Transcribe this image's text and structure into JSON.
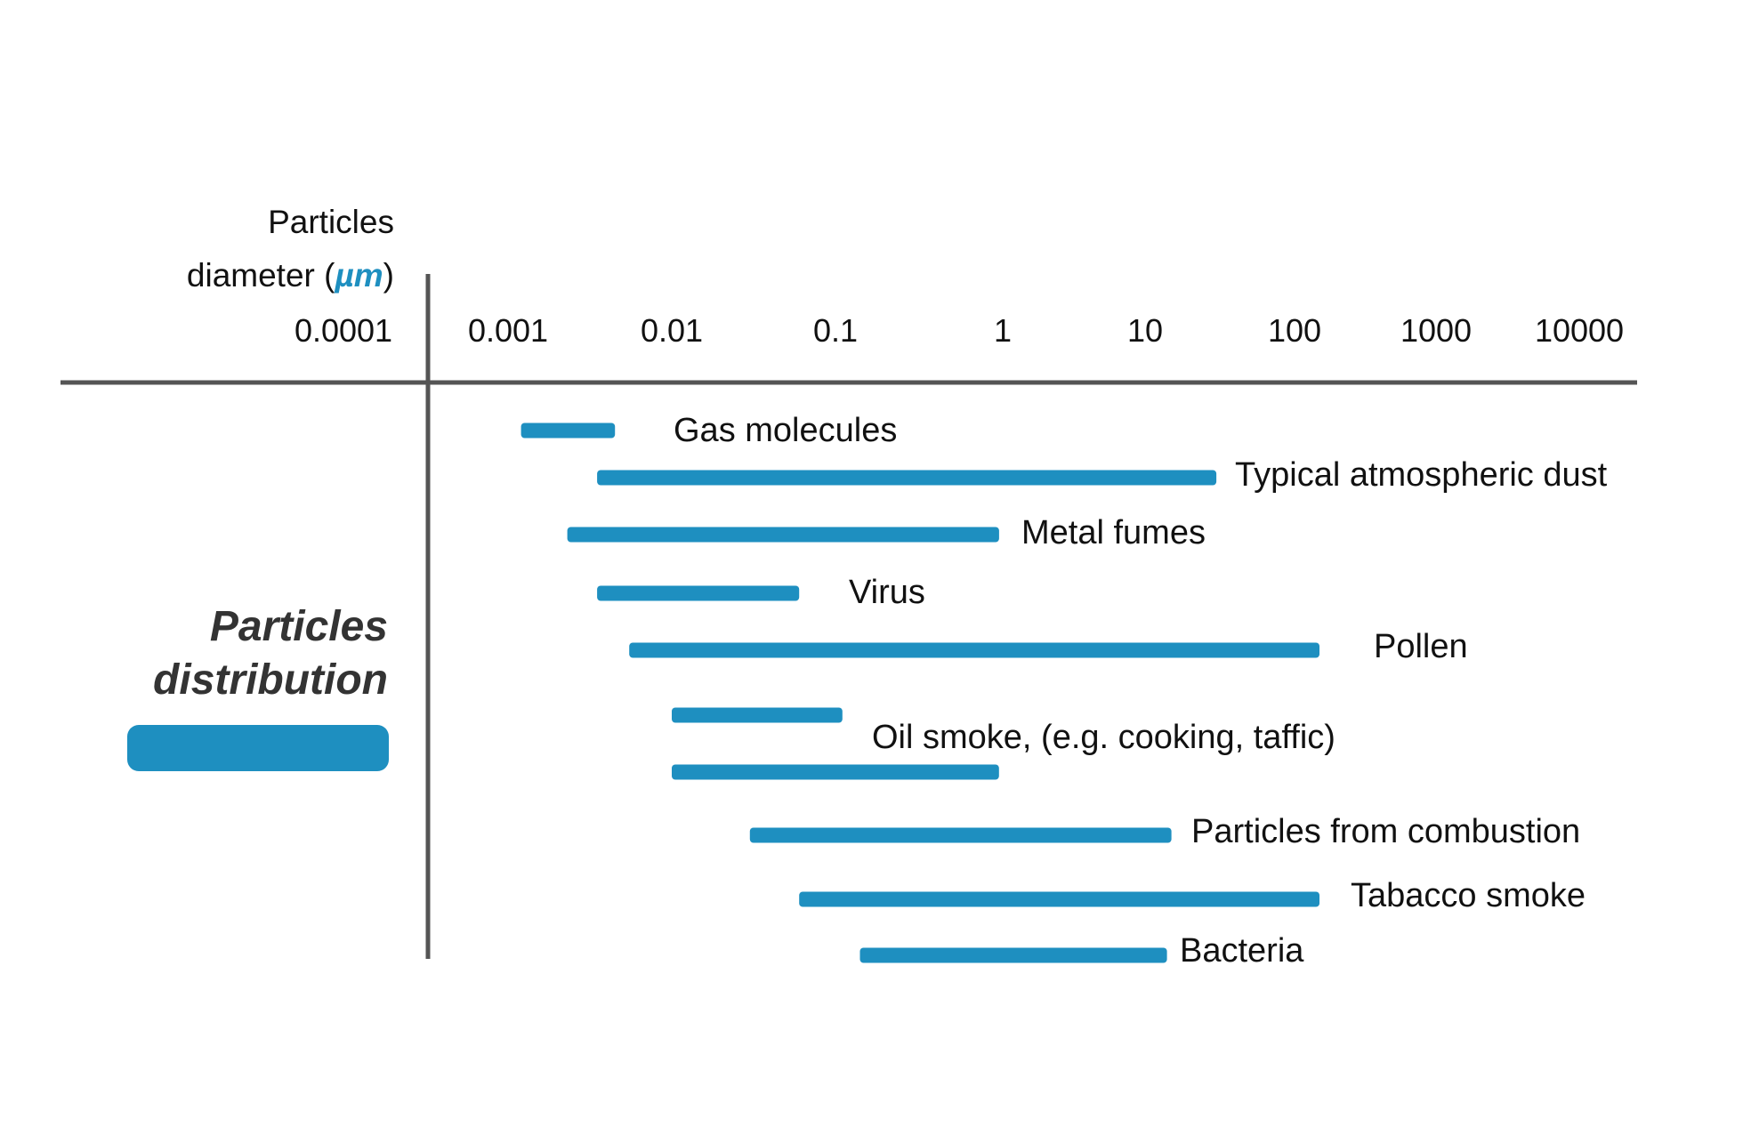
{
  "colors": {
    "bar": "#1e8fc0",
    "axis": "#555555",
    "text": "#111111",
    "legend_title": "#333333"
  },
  "chart_data": {
    "type": "bar",
    "orientation": "horizontal",
    "x_scale": "log",
    "xlabel_lines": [
      "Particles",
      "diameter ("
    ],
    "xlabel_unit": "µm",
    "xlabel_close": ")",
    "xlim": [
      0.0001,
      10000
    ],
    "x_ticks": [
      "0.0001",
      "0.001",
      "0.01",
      "0.1",
      "1",
      "10",
      "100",
      "1000",
      "10000"
    ],
    "legend_title_lines": [
      "Particles",
      "distribution"
    ],
    "legend_placement": "left",
    "categories": [
      "Gas molecules",
      "Typical atmospheric dust",
      "Metal fumes",
      "Virus",
      "Pollen",
      "Oil smoke, (e.g. cooking, taffic)",
      "Particles from combustion",
      "Tabacco smoke",
      "Bacteria"
    ],
    "ranges": [
      {
        "label": "Gas molecules",
        "bars": [
          [
            0.0012,
            0.0045
          ]
        ]
      },
      {
        "label": "Typical atmospheric dust",
        "bars": [
          [
            0.0035,
            30
          ]
        ]
      },
      {
        "label": "Metal fumes",
        "bars": [
          [
            0.0023,
            0.95
          ]
        ]
      },
      {
        "label": "Virus",
        "bars": [
          [
            0.0035,
            0.06
          ]
        ]
      },
      {
        "label": "Pollen",
        "bars": [
          [
            0.0055,
            150
          ]
        ]
      },
      {
        "label": "Oil smoke, (e.g. cooking, taffic)",
        "bars": [
          [
            0.01,
            0.11
          ],
          [
            0.01,
            0.95
          ]
        ]
      },
      {
        "label": "Particles from combustion",
        "bars": [
          [
            0.03,
            15
          ]
        ]
      },
      {
        "label": "Tabacco smoke",
        "bars": [
          [
            0.06,
            150
          ]
        ]
      },
      {
        "label": "Bacteria",
        "bars": [
          [
            0.14,
            14
          ]
        ]
      }
    ]
  }
}
